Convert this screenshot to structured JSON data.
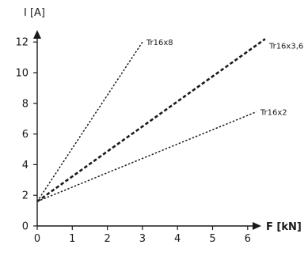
{
  "chart_data": {
    "type": "line",
    "title": "",
    "xlabel": "F [kN]",
    "ylabel": "I [A]",
    "xlim": [
      0,
      6.6
    ],
    "ylim": [
      0,
      12.5
    ],
    "xticks": [
      0,
      1,
      2,
      3,
      4,
      5,
      6
    ],
    "yticks": [
      0,
      2,
      4,
      6,
      8,
      10,
      12
    ],
    "grid": false,
    "legend": "none",
    "series": [
      {
        "name": "Tr16x8",
        "x": [
          0,
          3.0
        ],
        "y": [
          1.6,
          12.0
        ],
        "style": "dotted",
        "color": "#1a1a1a"
      },
      {
        "name": "Tr16x3,6",
        "x": [
          0,
          6.5
        ],
        "y": [
          1.6,
          12.2
        ],
        "style": "dashed-bold",
        "color": "#1a1a1a"
      },
      {
        "name": "Tr16x2",
        "x": [
          0,
          6.25
        ],
        "y": [
          1.6,
          7.45
        ],
        "style": "dotted",
        "color": "#1a1a1a"
      }
    ]
  }
}
